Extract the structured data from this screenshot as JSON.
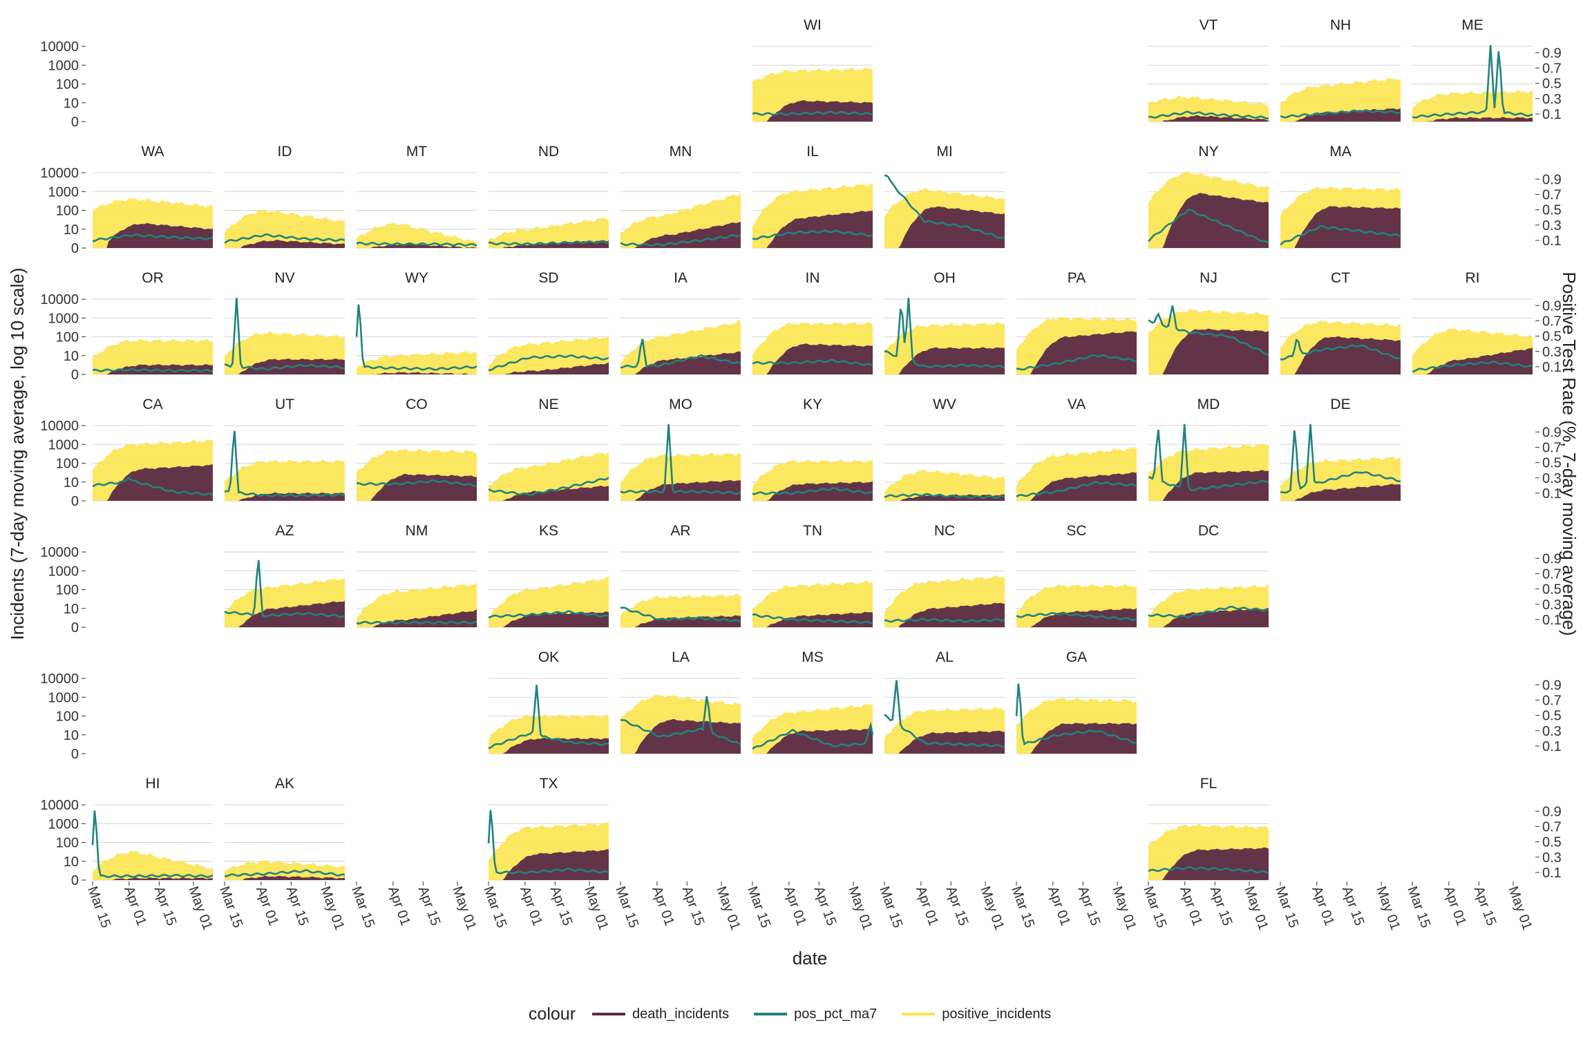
{
  "chart_data": {
    "type": "area",
    "facets": [
      {
        "state": "WI",
        "row": 0,
        "col": 5
      },
      {
        "state": "VT",
        "row": 0,
        "col": 8
      },
      {
        "state": "NH",
        "row": 0,
        "col": 9
      },
      {
        "state": "ME",
        "row": 0,
        "col": 10
      },
      {
        "state": "WA",
        "row": 1,
        "col": 0
      },
      {
        "state": "ID",
        "row": 1,
        "col": 1
      },
      {
        "state": "MT",
        "row": 1,
        "col": 2
      },
      {
        "state": "ND",
        "row": 1,
        "col": 3
      },
      {
        "state": "MN",
        "row": 1,
        "col": 4
      },
      {
        "state": "IL",
        "row": 1,
        "col": 5
      },
      {
        "state": "MI",
        "row": 1,
        "col": 6
      },
      {
        "state": "NY",
        "row": 1,
        "col": 8
      },
      {
        "state": "MA",
        "row": 1,
        "col": 9
      },
      {
        "state": "OR",
        "row": 2,
        "col": 0
      },
      {
        "state": "NV",
        "row": 2,
        "col": 1
      },
      {
        "state": "WY",
        "row": 2,
        "col": 2
      },
      {
        "state": "SD",
        "row": 2,
        "col": 3
      },
      {
        "state": "IA",
        "row": 2,
        "col": 4
      },
      {
        "state": "IN",
        "row": 2,
        "col": 5
      },
      {
        "state": "OH",
        "row": 2,
        "col": 6
      },
      {
        "state": "PA",
        "row": 2,
        "col": 7
      },
      {
        "state": "NJ",
        "row": 2,
        "col": 8
      },
      {
        "state": "CT",
        "row": 2,
        "col": 9
      },
      {
        "state": "RI",
        "row": 2,
        "col": 10
      },
      {
        "state": "CA",
        "row": 3,
        "col": 0
      },
      {
        "state": "UT",
        "row": 3,
        "col": 1
      },
      {
        "state": "CO",
        "row": 3,
        "col": 2
      },
      {
        "state": "NE",
        "row": 3,
        "col": 3
      },
      {
        "state": "MO",
        "row": 3,
        "col": 4
      },
      {
        "state": "KY",
        "row": 3,
        "col": 5
      },
      {
        "state": "WV",
        "row": 3,
        "col": 6
      },
      {
        "state": "VA",
        "row": 3,
        "col": 7
      },
      {
        "state": "MD",
        "row": 3,
        "col": 8
      },
      {
        "state": "DE",
        "row": 3,
        "col": 9
      },
      {
        "state": "AZ",
        "row": 4,
        "col": 1
      },
      {
        "state": "NM",
        "row": 4,
        "col": 2
      },
      {
        "state": "KS",
        "row": 4,
        "col": 3
      },
      {
        "state": "AR",
        "row": 4,
        "col": 4
      },
      {
        "state": "TN",
        "row": 4,
        "col": 5
      },
      {
        "state": "NC",
        "row": 4,
        "col": 6
      },
      {
        "state": "SC",
        "row": 4,
        "col": 7
      },
      {
        "state": "DC",
        "row": 4,
        "col": 8
      },
      {
        "state": "OK",
        "row": 5,
        "col": 3
      },
      {
        "state": "LA",
        "row": 5,
        "col": 4
      },
      {
        "state": "MS",
        "row": 5,
        "col": 5
      },
      {
        "state": "AL",
        "row": 5,
        "col": 6
      },
      {
        "state": "GA",
        "row": 5,
        "col": 7
      },
      {
        "state": "HI",
        "row": 6,
        "col": 0
      },
      {
        "state": "AK",
        "row": 6,
        "col": 1
      },
      {
        "state": "TX",
        "row": 6,
        "col": 3
      },
      {
        "state": "FL",
        "row": 6,
        "col": 8
      }
    ],
    "profiles": {
      "WI": {
        "pos": [
          2.1,
          2.7,
          2.8
        ],
        "death": [
          0,
          1.1,
          1.0
        ],
        "pct": [
          0.1,
          0.1,
          0.12,
          0.1
        ]
      },
      "VT": {
        "pos": [
          1.0,
          1.3,
          0.9
        ],
        "death": [
          0,
          0.3,
          0.1
        ],
        "pct": [
          0.05,
          0.12,
          0.08,
          0.05
        ]
      },
      "NH": {
        "pos": [
          1.0,
          1.9,
          2.3
        ],
        "death": [
          0,
          0.5,
          0.7
        ],
        "pct": [
          0.06,
          0.1,
          0.14,
          0.12
        ]
      },
      "ME": {
        "pos": [
          0.8,
          1.5,
          1.6
        ],
        "death": [
          0,
          0.2,
          0.2
        ],
        "pct": [
          0.06,
          0.1,
          0.13,
          0.08
        ]
      },
      "WA": {
        "pos": [
          2.0,
          2.6,
          2.2
        ],
        "death": [
          0.3,
          1.3,
          1.0
        ],
        "pct": [
          0.1,
          0.17,
          0.14,
          0.12
        ]
      },
      "ID": {
        "pos": [
          0.8,
          2.0,
          1.4
        ],
        "death": [
          0,
          0.4,
          0.2
        ],
        "pct": [
          0.08,
          0.17,
          0.12,
          0.1
        ]
      },
      "MT": {
        "pos": [
          0.5,
          1.3,
          0.3
        ],
        "death": [
          0,
          0.2,
          0
        ],
        "pct": [
          0.06,
          0.05,
          0.05,
          0.04
        ]
      },
      "ND": {
        "pos": [
          0.4,
          1.0,
          1.6
        ],
        "death": [
          0,
          0.2,
          0.4
        ],
        "pct": [
          0.06,
          0.05,
          0.07,
          0.08
        ]
      },
      "MN": {
        "pos": [
          0.8,
          1.7,
          2.9
        ],
        "death": [
          0,
          0.7,
          1.4
        ],
        "pct": [
          0.05,
          0.04,
          0.1,
          0.17
        ]
      },
      "IL": {
        "pos": [
          1.2,
          3.0,
          3.4
        ],
        "death": [
          0,
          1.6,
          2.0
        ],
        "pct": [
          0.12,
          0.2,
          0.22,
          0.16
        ]
      },
      "MI": {
        "pos": [
          1.7,
          3.1,
          2.6
        ],
        "death": [
          0,
          2.2,
          1.8
        ],
        "pct": [
          0.95,
          0.35,
          0.28,
          0.12
        ]
      },
      "NY": {
        "pos": [
          2.4,
          4.0,
          3.2
        ],
        "death": [
          0,
          2.9,
          2.4
        ],
        "pct": [
          0.1,
          0.5,
          0.28,
          0.06
        ]
      },
      "MA": {
        "pos": [
          1.7,
          3.2,
          3.1
        ],
        "death": [
          0,
          2.2,
          2.1
        ],
        "pct": [
          0.05,
          0.28,
          0.22,
          0.16
        ]
      },
      "OR": {
        "pos": [
          0.9,
          1.8,
          1.8
        ],
        "death": [
          0,
          0.5,
          0.5
        ],
        "pct": [
          0.05,
          0.06,
          0.05,
          0.05
        ]
      },
      "NV": {
        "pos": [
          1.0,
          2.2,
          2.0
        ],
        "death": [
          0,
          0.8,
          0.8
        ],
        "pct": [
          0.12,
          0.07,
          0.12,
          0.09
        ]
      },
      "WY": {
        "pos": [
          0.4,
          1.0,
          1.2
        ],
        "death": [
          0,
          0.1,
          0
        ],
        "pct": [
          0.1,
          0.08,
          0.07,
          0.1
        ]
      },
      "SD": {
        "pos": [
          0.5,
          1.6,
          2.0
        ],
        "death": [
          0,
          0.2,
          0.6
        ],
        "pct": [
          0.06,
          0.22,
          0.24,
          0.2
        ]
      },
      "IA": {
        "pos": [
          0.6,
          2.0,
          2.8
        ],
        "death": [
          0,
          0.8,
          1.2
        ],
        "pct": [
          0.1,
          0.12,
          0.24,
          0.14
        ]
      },
      "IN": {
        "pos": [
          1.0,
          2.7,
          2.7
        ],
        "death": [
          0,
          1.6,
          1.5
        ],
        "pct": [
          0.15,
          0.15,
          0.18,
          0.12
        ]
      },
      "OH": {
        "pos": [
          1.2,
          2.6,
          2.7
        ],
        "death": [
          0,
          1.4,
          1.4
        ],
        "pct": [
          0.3,
          0.1,
          0.12,
          0.1
        ]
      },
      "PA": {
        "pos": [
          1.3,
          3.0,
          2.9
        ],
        "death": [
          0,
          2.0,
          2.3
        ],
        "pct": [
          0.06,
          0.14,
          0.25,
          0.18
        ]
      },
      "NJ": {
        "pos": [
          2.2,
          3.4,
          3.2
        ],
        "death": [
          0,
          2.4,
          2.3
        ],
        "pct": [
          0.7,
          0.55,
          0.5,
          0.26
        ]
      },
      "CT": {
        "pos": [
          1.5,
          2.8,
          2.6
        ],
        "death": [
          0,
          2.0,
          1.8
        ],
        "pct": [
          0.2,
          0.32,
          0.38,
          0.2
        ]
      },
      "RI": {
        "pos": [
          1.0,
          2.4,
          2.0
        ],
        "death": [
          0,
          0.8,
          1.4
        ],
        "pct": [
          0.05,
          0.12,
          0.16,
          0.1
        ]
      },
      "CA": {
        "pos": [
          1.6,
          3.0,
          3.2
        ],
        "death": [
          0,
          1.7,
          1.9
        ],
        "pct": [
          0.2,
          0.26,
          0.12,
          0.08
        ]
      },
      "UT": {
        "pos": [
          1.0,
          2.1,
          2.1
        ],
        "death": [
          0,
          0.4,
          0.4
        ],
        "pct": [
          0.12,
          0.07,
          0.07,
          0.08
        ]
      },
      "CO": {
        "pos": [
          1.5,
          2.7,
          2.6
        ],
        "death": [
          0,
          1.4,
          1.3
        ],
        "pct": [
          0.22,
          0.22,
          0.26,
          0.2
        ]
      },
      "NE": {
        "pos": [
          0.8,
          1.8,
          2.6
        ],
        "death": [
          0,
          0.5,
          0.8
        ],
        "pct": [
          0.14,
          0.08,
          0.18,
          0.3
        ]
      },
      "MO": {
        "pos": [
          1.0,
          2.4,
          2.5
        ],
        "death": [
          0,
          0.9,
          1.1
        ],
        "pct": [
          0.12,
          0.12,
          0.12,
          0.1
        ]
      },
      "KY": {
        "pos": [
          0.8,
          2.1,
          2.1
        ],
        "death": [
          0,
          0.9,
          1.0
        ],
        "pct": [
          0.1,
          0.1,
          0.16,
          0.1
        ]
      },
      "WV": {
        "pos": [
          0.5,
          1.6,
          1.2
        ],
        "death": [
          0,
          0.3,
          0.3
        ],
        "pct": [
          0.06,
          0.08,
          0.05,
          0.05
        ]
      },
      "VA": {
        "pos": [
          0.8,
          2.4,
          2.8
        ],
        "death": [
          0,
          1.2,
          1.5
        ],
        "pct": [
          0.06,
          0.12,
          0.24,
          0.2
        ]
      },
      "MD": {
        "pos": [
          1.4,
          2.7,
          3.0
        ],
        "death": [
          0,
          1.5,
          1.6
        ],
        "pct": [
          0.3,
          0.14,
          0.2,
          0.26
        ]
      },
      "DE": {
        "pos": [
          0.8,
          2.1,
          2.3
        ],
        "death": [
          0,
          0.6,
          0.9
        ],
        "pct": [
          0.1,
          0.24,
          0.38,
          0.26
        ]
      },
      "AZ": {
        "pos": [
          0.8,
          2.1,
          2.6
        ],
        "death": [
          0,
          1.0,
          1.4
        ],
        "pct": [
          0.2,
          0.15,
          0.18,
          0.14
        ]
      },
      "NM": {
        "pos": [
          0.5,
          1.9,
          2.3
        ],
        "death": [
          0,
          0.4,
          0.9
        ],
        "pct": [
          0.06,
          0.06,
          0.06,
          0.06
        ]
      },
      "KS": {
        "pos": [
          0.5,
          2.0,
          2.6
        ],
        "death": [
          0,
          0.7,
          0.8
        ],
        "pct": [
          0.14,
          0.16,
          0.2,
          0.14
        ]
      },
      "AR": {
        "pos": [
          0.6,
          1.6,
          1.7
        ],
        "death": [
          0,
          0.5,
          0.6
        ],
        "pct": [
          0.26,
          0.1,
          0.12,
          0.08
        ]
      },
      "TN": {
        "pos": [
          0.9,
          2.2,
          2.4
        ],
        "death": [
          0,
          0.6,
          0.8
        ],
        "pct": [
          0.16,
          0.1,
          0.08,
          0.06
        ]
      },
      "NC": {
        "pos": [
          0.8,
          2.4,
          2.7
        ],
        "death": [
          0,
          1.0,
          1.3
        ],
        "pct": [
          0.08,
          0.1,
          0.08,
          0.1
        ]
      },
      "SC": {
        "pos": [
          0.8,
          2.2,
          2.2
        ],
        "death": [
          0,
          0.8,
          1.0
        ],
        "pct": [
          0.14,
          0.18,
          0.14,
          0.1
        ]
      },
      "DC": {
        "pos": [
          0.6,
          2.0,
          2.2
        ],
        "death": [
          0,
          0.8,
          1.0
        ],
        "pct": [
          0.16,
          0.14,
          0.26,
          0.22
        ]
      },
      "OK": {
        "pos": [
          0.8,
          2.0,
          2.0
        ],
        "death": [
          0,
          0.8,
          0.8
        ],
        "pct": [
          0.08,
          0.26,
          0.15,
          0.12
        ]
      },
      "LA": {
        "pos": [
          1.8,
          3.1,
          2.6
        ],
        "death": [
          0,
          1.8,
          1.6
        ],
        "pct": [
          0.45,
          0.22,
          0.32,
          0.12
        ]
      },
      "MS": {
        "pos": [
          0.8,
          2.2,
          2.6
        ],
        "death": [
          0,
          1.2,
          1.3
        ],
        "pct": [
          0.06,
          0.3,
          0.1,
          0.14
        ]
      },
      "AL": {
        "pos": [
          0.8,
          2.3,
          2.4
        ],
        "death": [
          0,
          1.1,
          1.2
        ],
        "pct": [
          0.5,
          0.14,
          0.12,
          0.1
        ]
      },
      "GA": {
        "pos": [
          1.5,
          2.9,
          2.8
        ],
        "death": [
          0,
          1.6,
          1.6
        ],
        "pct": [
          0.1,
          0.24,
          0.3,
          0.14
        ]
      },
      "HI": {
        "pos": [
          0.5,
          1.5,
          0.6
        ],
        "death": [
          0,
          0.1,
          0.1
        ],
        "pct": [
          0.05,
          0.05,
          0.06,
          0.05
        ]
      },
      "AK": {
        "pos": [
          0.5,
          1.0,
          0.7
        ],
        "death": [
          0,
          0.2,
          0.1
        ],
        "pct": [
          0.06,
          0.08,
          0.12,
          0.06
        ]
      },
      "TX": {
        "pos": [
          1.0,
          2.8,
          3.0
        ],
        "death": [
          0,
          1.4,
          1.6
        ],
        "pct": [
          0.1,
          0.1,
          0.14,
          0.1
        ]
      },
      "FL": {
        "pos": [
          1.8,
          2.9,
          2.8
        ],
        "death": [
          0,
          1.6,
          1.7
        ],
        "pct": [
          0.12,
          0.16,
          0.14,
          0.1
        ]
      }
    },
    "spikes": {
      "ME": [
        [
          0.65,
          1
        ],
        [
          0.72,
          1
        ]
      ],
      "NV": [
        [
          0.1,
          1
        ]
      ],
      "WY": [
        [
          0.02,
          1
        ]
      ],
      "IA": [
        [
          0.18,
          0.5
        ]
      ],
      "OH": [
        [
          0.14,
          1
        ],
        [
          0.2,
          1
        ]
      ],
      "NJ": [
        [
          0.08,
          0.8
        ],
        [
          0.2,
          0.9
        ]
      ],
      "CT": [
        [
          0.14,
          0.5
        ]
      ],
      "CA": [
        [
          0.3,
          0.3
        ]
      ],
      "UT": [
        [
          0.08,
          1
        ]
      ],
      "MO": [
        [
          0.4,
          1
        ]
      ],
      "MD": [
        [
          0.08,
          1
        ],
        [
          0.3,
          1
        ]
      ],
      "DE": [
        [
          0.12,
          1
        ],
        [
          0.25,
          1
        ]
      ],
      "AZ": [
        [
          0.28,
          0.95
        ]
      ],
      "OK": [
        [
          0.4,
          0.9
        ]
      ],
      "LA": [
        [
          0.72,
          0.8
        ]
      ],
      "MS": [
        [
          0.98,
          0.4
        ]
      ],
      "AL": [
        [
          0.1,
          0.96
        ]
      ],
      "GA": [
        [
          0.02,
          1
        ]
      ],
      "HI": [
        [
          0.02,
          1
        ]
      ],
      "TX": [
        [
          0.02,
          1
        ]
      ],
      "MI": [
        [
          0.02,
          0.95
        ]
      ]
    },
    "y_left_ticks": [
      "10000",
      "1000",
      "100",
      "10",
      "0"
    ],
    "y_right_ticks": [
      "0.9",
      "0.7",
      "0.5",
      "0.3",
      "0.1"
    ],
    "x_ticks": [
      "Mar 15",
      "Apr 01",
      "Apr 15",
      "May 01"
    ],
    "x_range": [
      "Mar 15",
      "May 10"
    ],
    "xlabel": "date",
    "ylabel": "Incidents (7-day moving average, log 10 scale)",
    "ylabel_right": "Positive Test Rate (%, 7-day moving average)",
    "legend": {
      "title": "colour",
      "placement": "bottom",
      "items": [
        {
          "name": "death_incidents",
          "color": "#5b2a47"
        },
        {
          "name": "pos_pct_ma7",
          "color": "#21837d"
        },
        {
          "name": "positive_incidents",
          "color": "#fbe552"
        }
      ]
    },
    "grid": true
  }
}
